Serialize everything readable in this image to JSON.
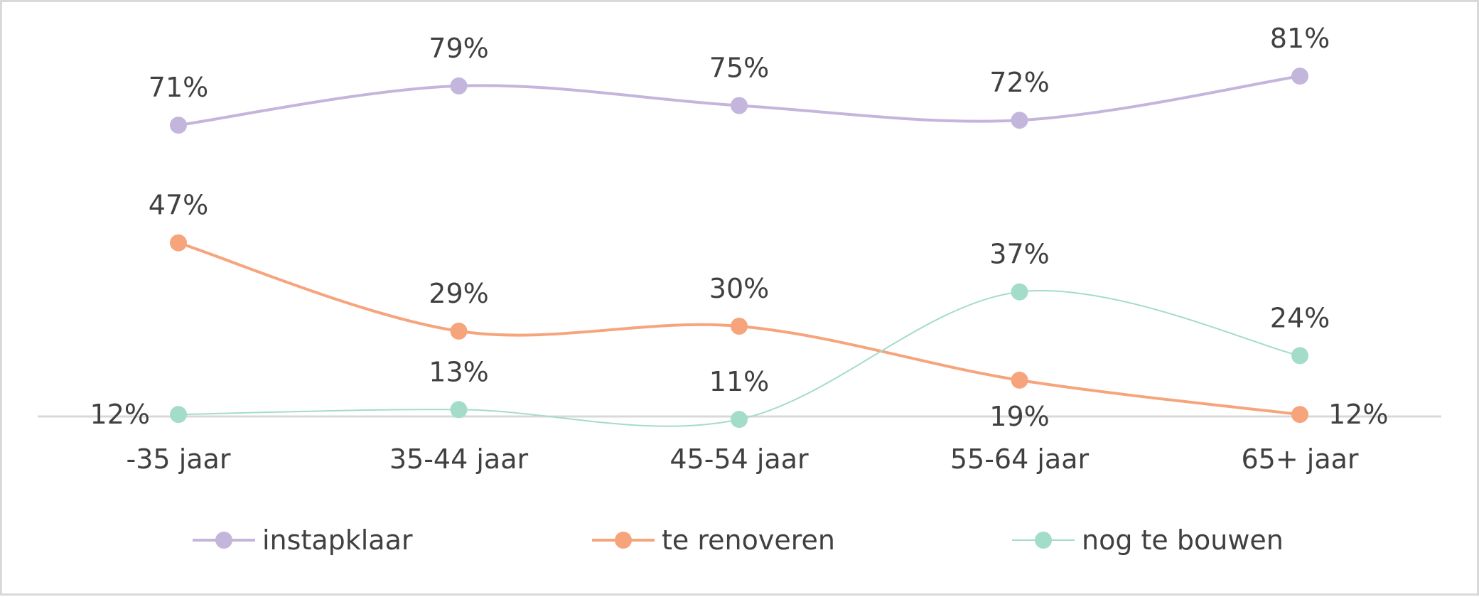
{
  "chart_data": {
    "type": "line",
    "categories": [
      "-35 jaar",
      "35-44 jaar",
      "45-54 jaar",
      "55-64 jaar",
      "65+ jaar"
    ],
    "ylim": [
      0,
      90
    ],
    "grid": false,
    "legend_position": "bottom",
    "series": [
      {
        "key": "instapklaar",
        "name": "instapklaar",
        "color": "#c4b5dc",
        "values": [
          71,
          79,
          75,
          72,
          81
        ],
        "labels": [
          "71%",
          "79%",
          "75%",
          "72%",
          "81%"
        ],
        "label_positions": [
          "above",
          "above",
          "above",
          "above",
          "above"
        ]
      },
      {
        "key": "te_renoveren",
        "name": "te renoveren",
        "color": "#f6a47c",
        "values": [
          47,
          29,
          30,
          19,
          12
        ],
        "labels": [
          "47%",
          "29%",
          "30%",
          "19%",
          "12%"
        ],
        "label_positions": [
          "above",
          "above",
          "above",
          "below",
          "right"
        ]
      },
      {
        "key": "nog_te_bouwen",
        "name": "nog te bouwen",
        "color": "#a3dcc9",
        "values": [
          12,
          13,
          11,
          37,
          24
        ],
        "labels": [
          "12%",
          "13%",
          "11%",
          "37%",
          "24%"
        ],
        "label_positions": [
          "left",
          "above",
          "above",
          "above",
          "above"
        ]
      }
    ]
  }
}
